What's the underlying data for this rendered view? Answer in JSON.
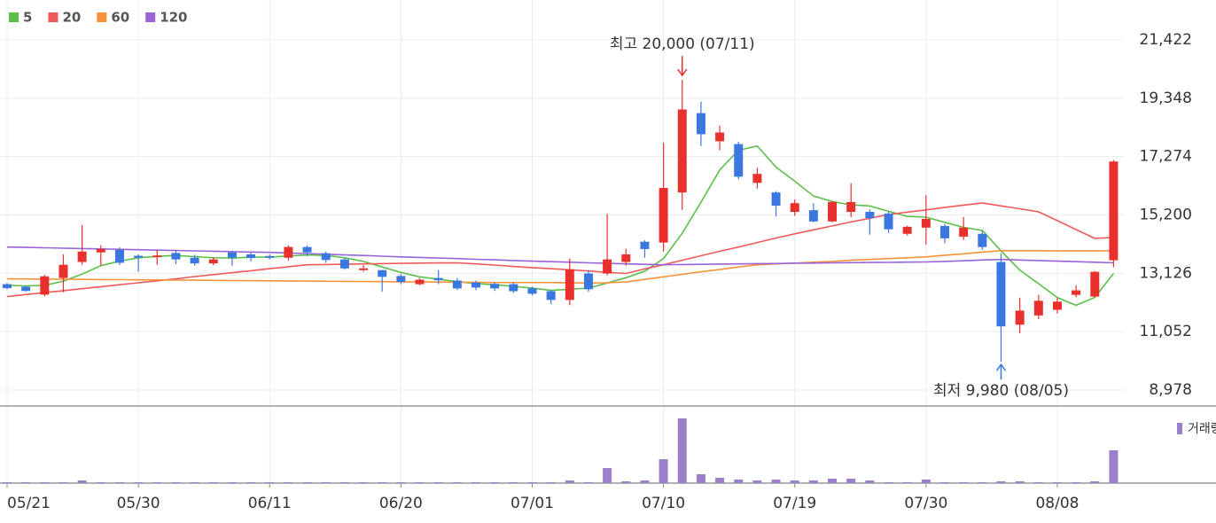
{
  "chart_data": {
    "type": "candlestick",
    "categories": [
      "05/21",
      null,
      null,
      null,
      null,
      null,
      null,
      "05/30",
      null,
      null,
      null,
      null,
      null,
      null,
      "06/11",
      null,
      null,
      null,
      null,
      null,
      null,
      "06/20",
      null,
      null,
      null,
      null,
      null,
      null,
      "07/01",
      null,
      null,
      null,
      null,
      null,
      null,
      "07/10",
      null,
      null,
      null,
      null,
      null,
      null,
      "07/19",
      null,
      null,
      null,
      null,
      null,
      null,
      "07/30",
      null,
      null,
      null,
      null,
      null,
      null,
      "08/08",
      null,
      null,
      null
    ],
    "open": [
      12740,
      12650,
      12370,
      12960,
      13530,
      13870,
      13960,
      13750,
      13700,
      13850,
      13680,
      13480,
      13870,
      13800,
      13740,
      13680,
      14060,
      13840,
      13620,
      13240,
      13240,
      13030,
      12740,
      12960,
      12870,
      12800,
      12750,
      12740,
      12590,
      12490,
      12180,
      13120,
      13120,
      13530,
      14250,
      14220,
      16000,
      18820,
      17820,
      17720,
      16340,
      16000,
      15310,
      15370,
      14970,
      15310,
      15310,
      15250,
      14530,
      14750,
      14810,
      14430,
      14530,
      13530,
      11300,
      11630,
      11830,
      12360,
      12300,
      13590
    ],
    "high": [
      12780,
      12680,
      13070,
      13800,
      14840,
      14120,
      14050,
      13800,
      13960,
      13960,
      13780,
      13700,
      13930,
      13870,
      13800,
      14120,
      14120,
      13900,
      13680,
      13420,
      13240,
      13110,
      12960,
      13240,
      12960,
      12870,
      12800,
      12800,
      12650,
      12530,
      13650,
      13240,
      15240,
      14000,
      14300,
      17770,
      20000,
      19230,
      18380,
      17800,
      16880,
      16050,
      15750,
      15620,
      15700,
      16330,
      15400,
      15330,
      14820,
      15900,
      14880,
      15130,
      14620,
      13840,
      12260,
      12360,
      12240,
      12700,
      13210,
      17150
    ],
    "low": [
      12560,
      12480,
      12300,
      12450,
      13430,
      13400,
      13420,
      13180,
      13430,
      13450,
      13400,
      13420,
      13400,
      13550,
      13620,
      13580,
      13740,
      13500,
      13250,
      13180,
      12480,
      12740,
      12700,
      12740,
      12530,
      12530,
      12500,
      12430,
      12340,
      12030,
      11990,
      12470,
      13050,
      13400,
      13680,
      13900,
      15380,
      17650,
      17500,
      16470,
      16140,
      15150,
      15170,
      14940,
      14940,
      15120,
      14500,
      14560,
      14470,
      14150,
      14190,
      14310,
      13960,
      9980,
      11000,
      11500,
      11700,
      12280,
      12270,
      13340
    ],
    "close": [
      12600,
      12500,
      13020,
      13430,
      13900,
      13990,
      13500,
      13680,
      13760,
      13620,
      13480,
      13620,
      13680,
      13670,
      13680,
      14060,
      13870,
      13600,
      13300,
      13300,
      13000,
      12820,
      12900,
      12880,
      12590,
      12620,
      12590,
      12490,
      12400,
      12180,
      13270,
      12560,
      13620,
      13800,
      13990,
      16160,
      18950,
      18070,
      18130,
      16560,
      16660,
      15530,
      15620,
      14970,
      15660,
      15660,
      15090,
      14690,
      14780,
      15060,
      14370,
      14750,
      14060,
      11240,
      11800,
      12150,
      12120,
      12520,
      13180,
      17100
    ],
    "up_color": "#e8302c",
    "down_color": "#3a78e0",
    "series": [
      {
        "name": "5",
        "color": "#5cbf4a",
        "values": [
          12700,
          12680,
          12700,
          12850,
          13100,
          13400,
          13560,
          13680,
          13730,
          13760,
          13720,
          13680,
          13670,
          13700,
          13700,
          13740,
          13780,
          13760,
          13680,
          13550,
          13350,
          13160,
          13000,
          12920,
          12830,
          12760,
          12720,
          12660,
          12600,
          12520,
          12560,
          12600,
          12780,
          12970,
          13200,
          13650,
          14550,
          15650,
          16800,
          17500,
          17650,
          16900,
          16400,
          15870,
          15680,
          15560,
          15520,
          15330,
          15150,
          15120,
          14940,
          14760,
          14650,
          13920,
          13240,
          12760,
          12260,
          11990,
          12270,
          13120
        ]
      },
      {
        "name": "20",
        "color": "#ee5a5a",
        "values": [
          12300,
          12370,
          12440,
          12510,
          12580,
          12650,
          12720,
          12790,
          12860,
          12930,
          13010,
          13080,
          13150,
          13220,
          13290,
          13360,
          13430,
          13440,
          13450,
          13460,
          13470,
          13480,
          13490,
          13495,
          13500,
          13460,
          13420,
          13370,
          13330,
          13290,
          13250,
          13210,
          13160,
          13120,
          13280,
          13430,
          13590,
          13750,
          13910,
          14060,
          14220,
          14380,
          14530,
          14670,
          14810,
          14950,
          15080,
          15220,
          15300,
          15380,
          15470,
          15550,
          15630,
          15520,
          15420,
          15310,
          15000,
          14680,
          14370,
          14400
        ]
      },
      {
        "name": "60",
        "color": "#f5923a",
        "values": [
          12930,
          12925,
          12920,
          12915,
          12910,
          12905,
          12900,
          12895,
          12890,
          12885,
          12880,
          12875,
          12870,
          12865,
          12860,
          12855,
          12850,
          12845,
          12840,
          12835,
          12830,
          12825,
          12820,
          12815,
          12810,
          12805,
          12800,
          12800,
          12800,
          12800,
          12790,
          12780,
          12790,
          12820,
          12910,
          13000,
          13090,
          13180,
          13260,
          13350,
          13430,
          13460,
          13490,
          13520,
          13550,
          13590,
          13620,
          13650,
          13680,
          13710,
          13770,
          13820,
          13880,
          13930,
          13930,
          13930,
          13920,
          13920,
          13920,
          13930
        ]
      },
      {
        "name": "120",
        "color": "#9a64d6",
        "values": [
          14060,
          14046,
          14033,
          14019,
          14006,
          13992,
          13979,
          13965,
          13951,
          13938,
          13924,
          13911,
          13897,
          13884,
          13870,
          13850,
          13830,
          13805,
          13780,
          13760,
          13735,
          13710,
          13690,
          13670,
          13650,
          13625,
          13605,
          13580,
          13560,
          13540,
          13520,
          13500,
          13480,
          13460,
          13445,
          13430,
          13440,
          13445,
          13455,
          13460,
          13470,
          13475,
          13485,
          13490,
          13500,
          13505,
          13510,
          13515,
          13525,
          13530,
          13550,
          13570,
          13600,
          13620,
          13600,
          13580,
          13560,
          13540,
          13520,
          13500
        ]
      }
    ],
    "volume": {
      "name": "거래량",
      "color": "#9b7fc8",
      "values": [
        1,
        1,
        1,
        1,
        3,
        1,
        1,
        1,
        1,
        1,
        1,
        1,
        1,
        1,
        1,
        1,
        1,
        1,
        1,
        1,
        1,
        1,
        1,
        1,
        1,
        1,
        1,
        1,
        1,
        1,
        3,
        1,
        17,
        2,
        3,
        27,
        73,
        10,
        6,
        4,
        3,
        4,
        3,
        3,
        5,
        5,
        3,
        1,
        1,
        4,
        1,
        1,
        1,
        2,
        2,
        1,
        1,
        1,
        2,
        37
      ]
    },
    "ylim": [
      8411,
      22840
    ],
    "yticks": [
      {
        "value": 8978,
        "label": "8,978"
      },
      {
        "value": 11052,
        "label": "11,052"
      },
      {
        "value": 13126,
        "label": "13,126"
      },
      {
        "value": 15200,
        "label": "15,200"
      },
      {
        "value": 17274,
        "label": "17,274"
      },
      {
        "value": 19348,
        "label": "19,348"
      },
      {
        "value": 21422,
        "label": "21,422"
      }
    ],
    "annotations": [
      {
        "text": "최고 20,000 (07/11)",
        "color": "#e8302c"
      },
      {
        "text": "최저 9,980 (08/05)",
        "color": "#3a78e0"
      }
    ],
    "grid": true
  }
}
